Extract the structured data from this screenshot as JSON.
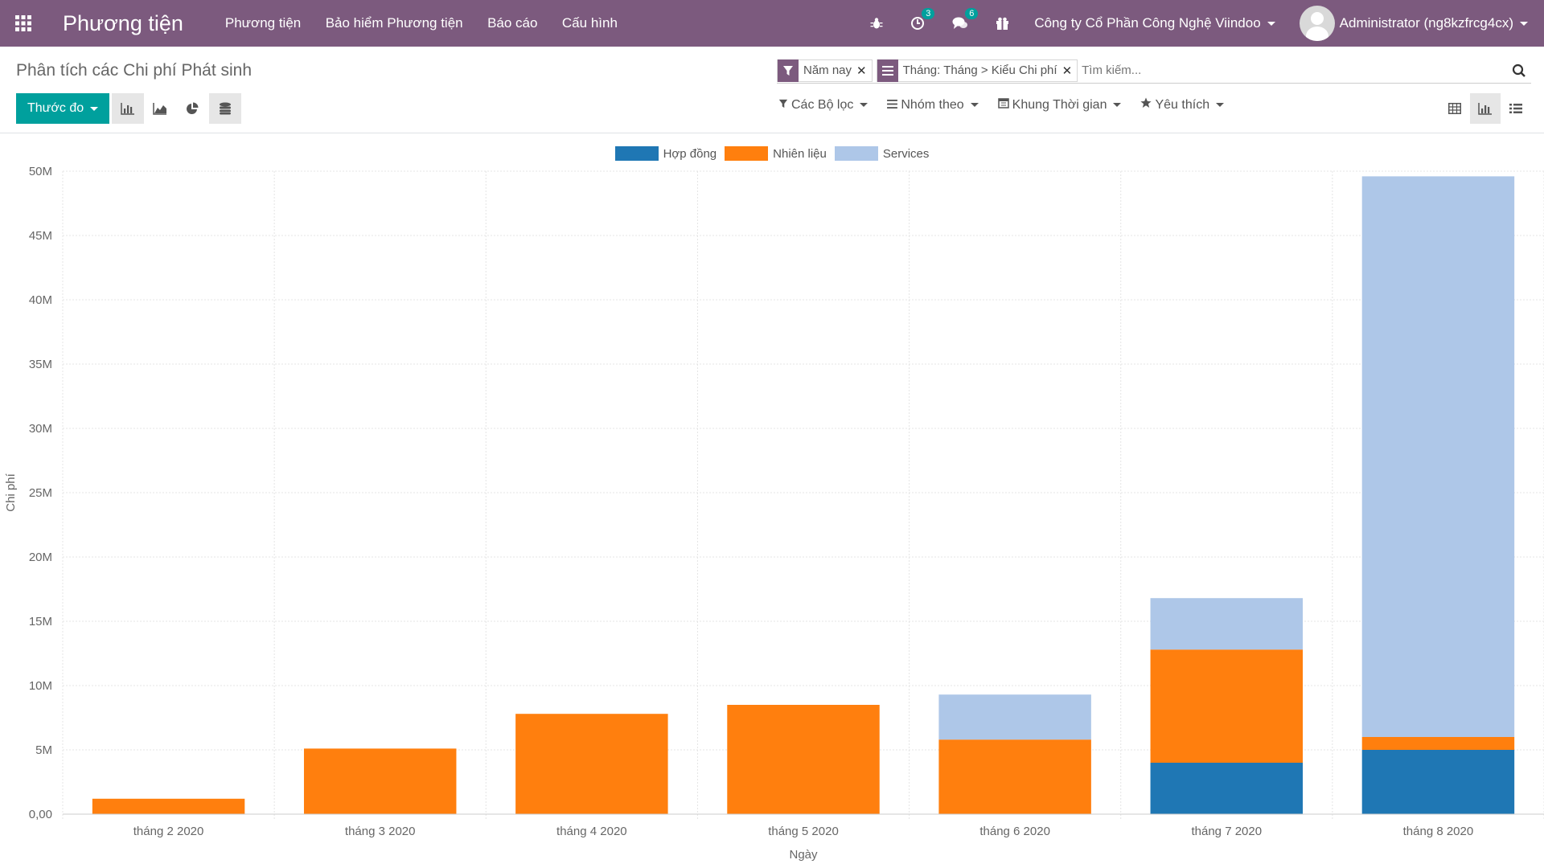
{
  "navbar": {
    "app_title": "Phương tiện",
    "menu": [
      "Phương tiện",
      "Bảo hiểm Phương tiện",
      "Báo cáo",
      "Cấu hình"
    ],
    "activity_count": "3",
    "message_count": "6",
    "company": "Công ty Cổ Phần Công Nghệ Viindoo",
    "user": "Administrator (ng8kzfrcg4cx)"
  },
  "control_panel": {
    "page_title": "Phân tích các Chi phí Phát sinh",
    "facets": [
      "Năm nay",
      "Tháng: Tháng > Kiểu Chi phí"
    ],
    "search_placeholder": "Tìm kiếm...",
    "measure_label": "Thước đo",
    "filters_label": "Các Bộ lọc",
    "groupby_label": "Nhóm theo",
    "timerange_label": "Khung Thời gian",
    "favorites_label": "Yêu thích"
  },
  "colors": {
    "navbar": "#7c5a7e",
    "primary_button": "#00a09d",
    "series_1": "#1f77b4",
    "series_2": "#ff7f0e",
    "series_3": "#aec7e8"
  },
  "chart_data": {
    "type": "bar",
    "stacked": true,
    "categories": [
      "tháng 2 2020",
      "tháng 3 2020",
      "tháng 4 2020",
      "tháng 5 2020",
      "tháng 6 2020",
      "tháng 7 2020",
      "tháng 8 2020"
    ],
    "series": [
      {
        "name": "Hợp đồng",
        "values": [
          0,
          0,
          0,
          0,
          0,
          4000000,
          5000000
        ]
      },
      {
        "name": "Nhiên liệu",
        "values": [
          1200000,
          5100000,
          7800000,
          8500000,
          5800000,
          8800000,
          1000000
        ]
      },
      {
        "name": "Services",
        "values": [
          0,
          0,
          0,
          0,
          3500000,
          4000000,
          43600000
        ]
      }
    ],
    "ytick_labels": [
      "0,00",
      "5M",
      "10M",
      "15M",
      "20M",
      "25M",
      "30M",
      "35M",
      "40M",
      "45M",
      "50M"
    ],
    "xlabel": "Ngày",
    "ylabel": "Chi phí",
    "ylim": [
      0,
      50000000
    ],
    "grid": true,
    "legend_position": "top-center"
  }
}
